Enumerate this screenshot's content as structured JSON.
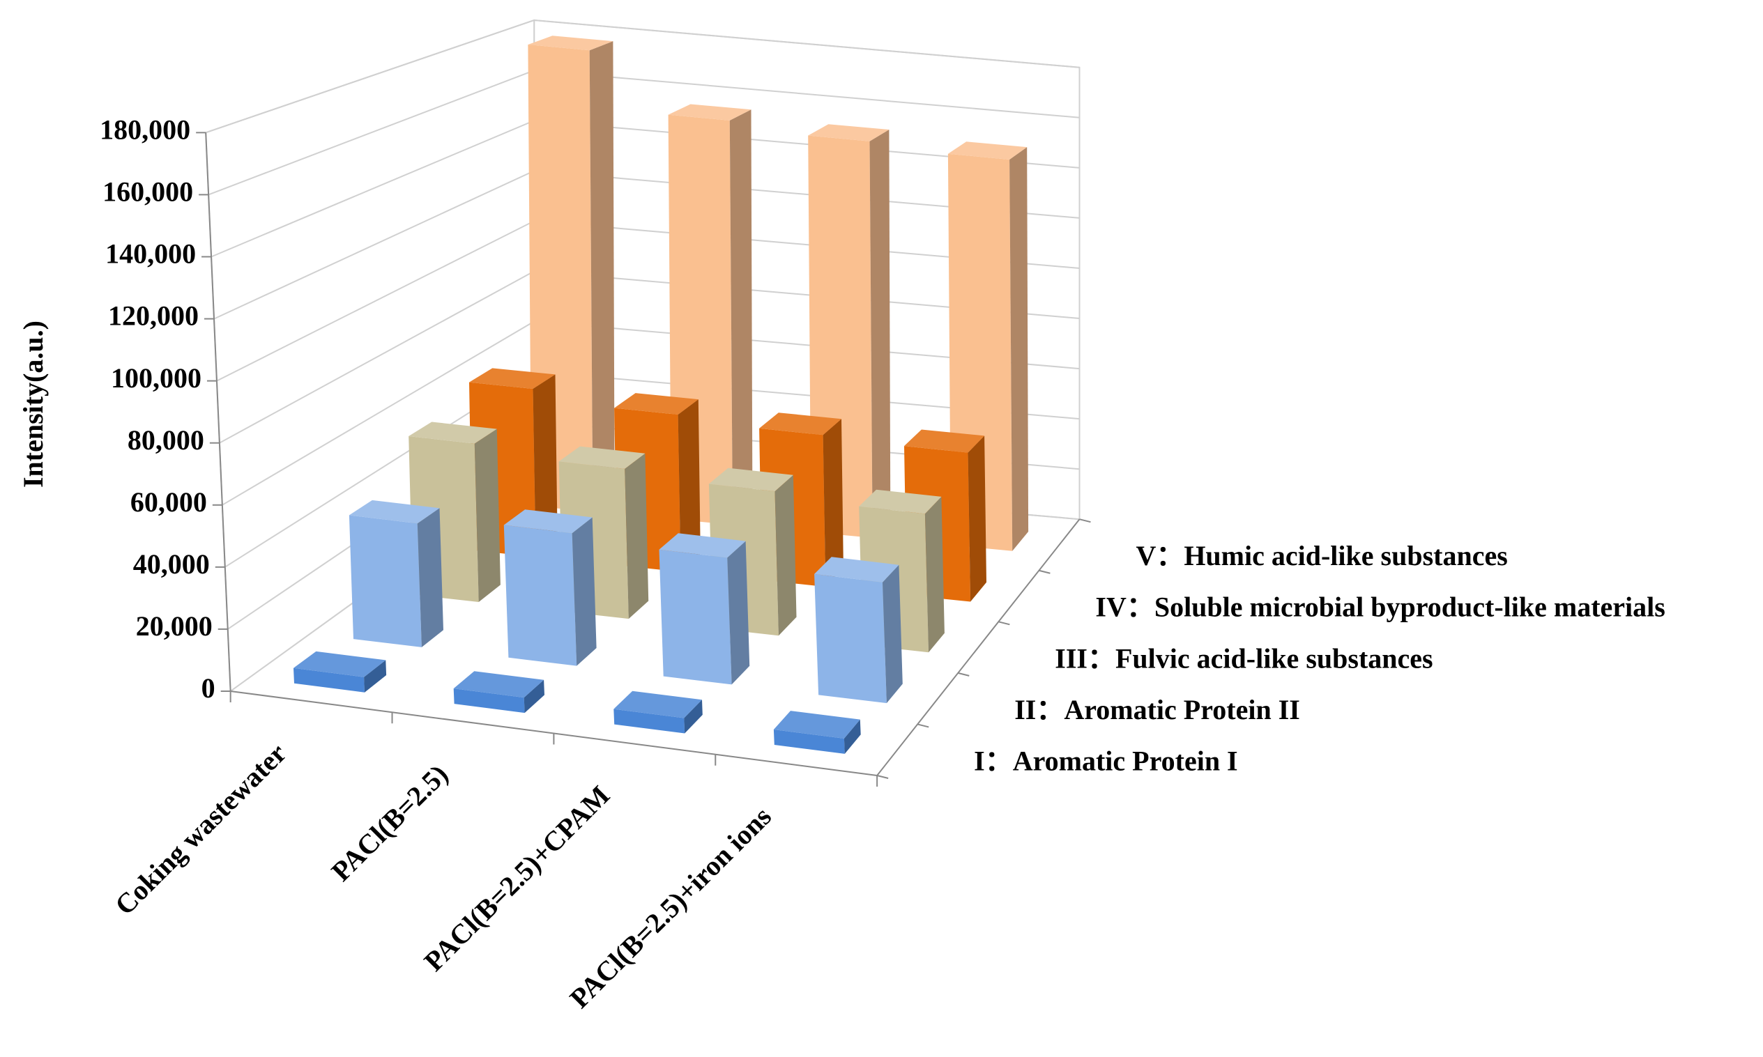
{
  "chart_data": {
    "type": "bar3d",
    "y_label": "Intensity(a.u.)",
    "categories": [
      "Coking wastewater",
      "PACl(B=2.5)",
      "PACl(B=2.5)+CPAM",
      "PACl(B=2.5)+iron ions"
    ],
    "series": [
      {
        "name": "I：Aromatic Protein I",
        "color": "#4a86d6",
        "values": [
          5000,
          5000,
          5000,
          5000
        ]
      },
      {
        "name": "II：Aromatic Protein II",
        "color": "#8db4e8",
        "values": [
          42000,
          45000,
          43000,
          41000
        ]
      },
      {
        "name": "III：Fulvic acid-like substances",
        "color": "#c9c19a",
        "values": [
          56000,
          53000,
          51000,
          49000
        ]
      },
      {
        "name": "IV：Soluble microbial byproduct-like materials",
        "color": "#e46c0a",
        "values": [
          62000,
          58000,
          56000,
          55000
        ]
      },
      {
        "name": "V：Humic acid-like substances",
        "color": "#fac090",
        "values": [
          178000,
          156000,
          153000,
          151000
        ]
      }
    ],
    "ylim": [
      0,
      180000
    ],
    "yticks": [
      0,
      {
        "value": 20000,
        "label": "20,000"
      },
      {
        "value": 40000,
        "label": "40,000"
      },
      {
        "value": 60000,
        "label": "60,000"
      },
      {
        "value": 80000,
        "label": "80,000"
      },
      {
        "value": 100000,
        "label": "100,000"
      },
      {
        "value": 120000,
        "label": "120,000"
      },
      {
        "value": 140000,
        "label": "140,000"
      },
      {
        "value": 160000,
        "label": "160,000"
      },
      {
        "value": 180000,
        "label": "180,000"
      }
    ],
    "grid": true
  }
}
